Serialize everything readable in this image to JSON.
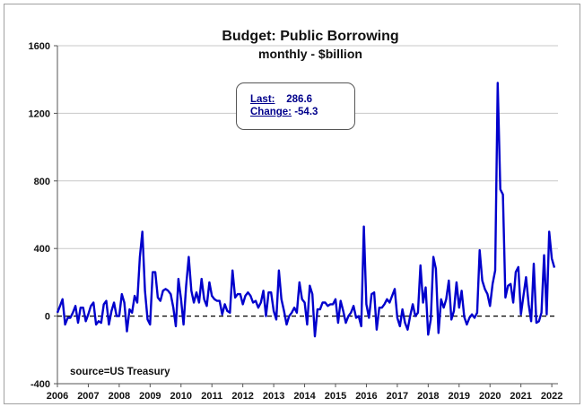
{
  "chart_data": {
    "type": "line",
    "title": "Budget: Public Borrowing",
    "subtitle": "monthly - $billion",
    "xlabel": "",
    "ylabel": "",
    "x_start": "2006-01",
    "x_frequency": "monthly",
    "xlim": [
      2006,
      2022.2
    ],
    "ylim": [
      -400,
      1600
    ],
    "yticks": [
      -400,
      0,
      400,
      800,
      1200,
      1600
    ],
    "xticks": [
      "2006",
      "2007",
      "2008",
      "2009",
      "2010",
      "2011",
      "2012",
      "2013",
      "2014",
      "2015",
      "2016",
      "2017",
      "2018",
      "2019",
      "2020",
      "2021",
      "2022"
    ],
    "grid": true,
    "zero_line": "dashed",
    "series": [
      {
        "color": "#0000cc",
        "values": [
          20,
          60,
          100,
          -50,
          -10,
          -10,
          20,
          60,
          -40,
          50,
          50,
          -30,
          10,
          60,
          80,
          -50,
          -30,
          -40,
          70,
          90,
          -50,
          30,
          80,
          0,
          0,
          130,
          80,
          -90,
          40,
          20,
          120,
          80,
          350,
          500,
          150,
          -20,
          -50,
          260,
          260,
          110,
          90,
          150,
          160,
          150,
          130,
          50,
          -60,
          220,
          100,
          -50,
          180,
          350,
          150,
          80,
          140,
          80,
          220,
          100,
          60,
          200,
          120,
          100,
          90,
          90,
          10,
          70,
          30,
          20,
          270,
          110,
          130,
          130,
          70,
          120,
          140,
          120,
          80,
          90,
          50,
          80,
          150,
          0,
          140,
          140,
          30,
          -20,
          270,
          100,
          30,
          -50,
          0,
          20,
          50,
          20,
          200,
          100,
          80,
          -50,
          180,
          130,
          -120,
          40,
          40,
          80,
          80,
          60,
          70,
          70,
          100,
          -40,
          90,
          30,
          -40,
          0,
          20,
          60,
          -10,
          0,
          -60,
          530,
          70,
          -10,
          130,
          140,
          -80,
          50,
          50,
          70,
          100,
          80,
          120,
          160,
          -10,
          -60,
          40,
          -40,
          -80,
          0,
          70,
          0,
          20,
          300,
          80,
          170,
          -110,
          -20,
          350,
          280,
          -100,
          100,
          50,
          100,
          210,
          -20,
          30,
          200,
          50,
          150,
          -5,
          -50,
          -10,
          10,
          -10,
          20,
          390,
          210,
          160,
          130,
          60,
          190,
          270,
          1380,
          750,
          720,
          110,
          180,
          190,
          80,
          260,
          290,
          10,
          120,
          230,
          70,
          -30,
          310,
          -40,
          -30,
          20,
          360,
          10,
          500,
          340.9,
          286.6
        ]
      }
    ]
  },
  "stats": {
    "last_label": "Last:",
    "last_value": "286.6",
    "change_label": "Change:",
    "change_value": "-54.3"
  },
  "source": "source=US Treasury"
}
